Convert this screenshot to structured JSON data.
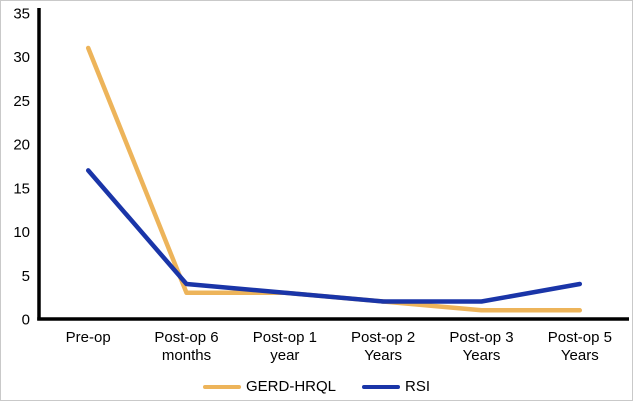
{
  "chart_data": {
    "type": "line",
    "title": "",
    "xlabel": "",
    "ylabel": "",
    "categories": [
      "Pre-op",
      "Post-op 6 months",
      "Post-op 1 year",
      "Post-op 2 Years",
      "Post-op 3 Years",
      "Post-op 5 Years"
    ],
    "category_label_lines": [
      [
        "Pre-op"
      ],
      [
        "Post-op 6",
        "months"
      ],
      [
        "Post-op 1",
        "year"
      ],
      [
        "Post-op 2",
        "Years"
      ],
      [
        "Post-op 3",
        "Years"
      ],
      [
        "Post-op 5",
        "Years"
      ]
    ],
    "series": [
      {
        "name": "GERD-HRQL",
        "color": "#EDB45A",
        "values": [
          31,
          3,
          3,
          2,
          1,
          1
        ]
      },
      {
        "name": "RSI",
        "color": "#1A35A8",
        "values": [
          17,
          4,
          3,
          2,
          2,
          4
        ]
      }
    ],
    "ylim": [
      0,
      35
    ],
    "yticks": [
      0,
      5,
      10,
      15,
      20,
      25,
      30,
      35
    ],
    "grid": false,
    "legend_position": "bottom",
    "axis_color": "#000000",
    "text_color": "#000000"
  }
}
